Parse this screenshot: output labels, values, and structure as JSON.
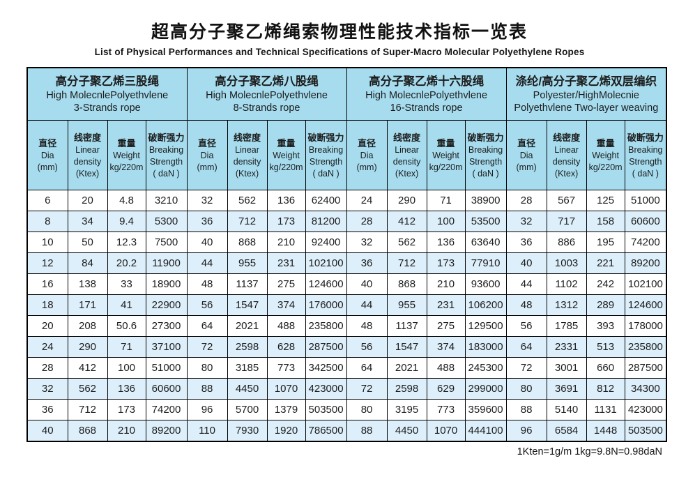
{
  "page": {
    "title_zh": "超高分子聚乙烯绳索物理性能技术指标一览表",
    "title_en": "List of Physical Performances and Technical Specifications of Super-Macro Molecular Polyethylene Ropes",
    "footnote": "1Kten=1g/m  1kg=9.8N=0.98daN"
  },
  "colors": {
    "header_bg": "#a6dcee",
    "stripe_bg": "#ddeffa",
    "border": "#000000"
  },
  "table": {
    "groups": [
      {
        "title_zh": "高分子聚乙烯三股绳",
        "title_en1": "High MolecnlePolyethvlene",
        "title_en2": "3-Strands rope"
      },
      {
        "title_zh": "高分子聚乙烯八股绳",
        "title_en1": "High MolecnlePolyethvlene",
        "title_en2": "8-Strands rope"
      },
      {
        "title_zh": "高分子聚乙烯十六股绳",
        "title_en1": "High MolecnlePolyethvlene",
        "title_en2": "16-Strands rope"
      },
      {
        "title_zh": "涤纶/高分子聚乙烯双层编织",
        "title_en1": "Polyester/HighMolecnie",
        "title_en2": "Polyethvlene Two-layer weaving"
      }
    ],
    "subheaders": [
      {
        "lines": [
          "直径",
          "Dia",
          "(mm)"
        ]
      },
      {
        "lines": [
          "线密度",
          "Linear",
          "density",
          "(Ktex)"
        ]
      },
      {
        "lines": [
          "重量",
          "Weight",
          "kg/220m"
        ]
      },
      {
        "lines": [
          "破断强力",
          "Breaking",
          "Strength",
          "( daN )"
        ]
      }
    ],
    "rows": [
      [
        6,
        20,
        4.8,
        3210,
        32,
        562,
        136,
        62400,
        24,
        290,
        71,
        38900,
        28,
        567,
        125,
        51000
      ],
      [
        8,
        34,
        9.4,
        5300,
        36,
        712,
        173,
        81200,
        28,
        412,
        100,
        53500,
        32,
        717,
        158,
        60600
      ],
      [
        10,
        50,
        12.3,
        7500,
        40,
        868,
        210,
        92400,
        32,
        562,
        136,
        63640,
        36,
        886,
        195,
        74200
      ],
      [
        12,
        84,
        20.2,
        11900,
        44,
        955,
        231,
        102100,
        36,
        712,
        173,
        77910,
        40,
        1003,
        221,
        89200
      ],
      [
        16,
        138,
        33,
        18900,
        48,
        1137,
        275,
        124600,
        40,
        868,
        210,
        93600,
        44,
        1102,
        242,
        102100
      ],
      [
        18,
        171,
        41,
        22900,
        56,
        1547,
        374,
        176000,
        44,
        955,
        231,
        106200,
        48,
        1312,
        289,
        124600
      ],
      [
        20,
        208,
        50.6,
        27300,
        64,
        2021,
        488,
        235800,
        48,
        1137,
        275,
        129500,
        56,
        1785,
        393,
        178000
      ],
      [
        24,
        290,
        71,
        37100,
        72,
        2598,
        628,
        287500,
        56,
        1547,
        374,
        183000,
        64,
        2331,
        513,
        235800
      ],
      [
        28,
        412,
        100,
        51000,
        80,
        3185,
        773,
        342500,
        64,
        2021,
        488,
        245300,
        72,
        3001,
        660,
        287500
      ],
      [
        32,
        562,
        136,
        60600,
        88,
        4450,
        1070,
        423000,
        72,
        2598,
        629,
        299000,
        80,
        3691,
        812,
        34300
      ],
      [
        36,
        712,
        173,
        74200,
        96,
        5700,
        1379,
        503500,
        80,
        3195,
        773,
        359600,
        88,
        5140,
        1131,
        423000
      ],
      [
        40,
        868,
        210,
        89200,
        110,
        7930,
        1920,
        786500,
        88,
        4450,
        1070,
        444100,
        96,
        6584,
        1448,
        503500
      ]
    ]
  }
}
